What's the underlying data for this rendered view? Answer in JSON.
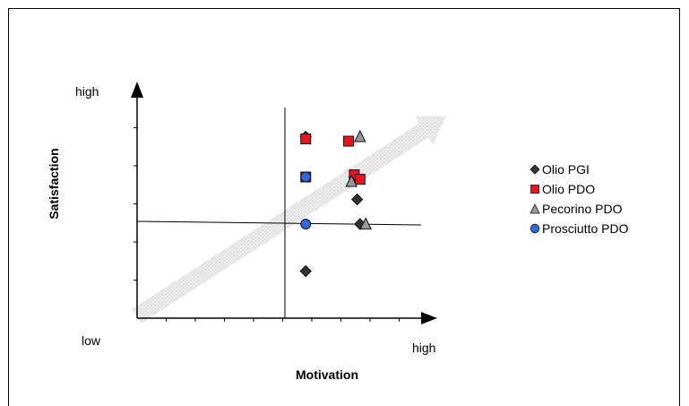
{
  "chart_data": {
    "type": "scatter",
    "xlabel": "Motivation",
    "ylabel": "Satisfaction",
    "x_tick_labels": {
      "low": "low",
      "high": "high"
    },
    "y_tick_labels": {
      "high": "high"
    },
    "xlim": [
      0,
      10
    ],
    "ylim": [
      0,
      10
    ],
    "grid": false,
    "legend_position": "right",
    "trend_arrow": {
      "from": [
        0,
        0.1
      ],
      "to": [
        10,
        8.2
      ]
    },
    "series": [
      {
        "name": "Olio PGI",
        "marker": "diamond",
        "color": "#333333",
        "points": [
          [
            5.9,
            8.1
          ],
          [
            7.6,
            6.3
          ],
          [
            7.7,
            5.3
          ],
          [
            7.8,
            4.2
          ],
          [
            5.9,
            2.1
          ]
        ]
      },
      {
        "name": "Olio PDO",
        "marker": "square",
        "color": "#e8141e",
        "points": [
          [
            5.9,
            8.0
          ],
          [
            7.4,
            7.9
          ],
          [
            7.6,
            6.4
          ],
          [
            7.8,
            6.2
          ],
          [
            5.9,
            6.3
          ]
        ]
      },
      {
        "name": "Pecorino PDO",
        "marker": "triangle",
        "color": "#999999",
        "points": [
          [
            7.8,
            8.1
          ],
          [
            7.5,
            6.1
          ],
          [
            8.0,
            4.2
          ]
        ]
      },
      {
        "name": "Prosciutto PDO",
        "marker": "circle",
        "color": "#3366e0",
        "points": [
          [
            5.9,
            6.3
          ],
          [
            5.9,
            4.2
          ]
        ]
      }
    ]
  }
}
